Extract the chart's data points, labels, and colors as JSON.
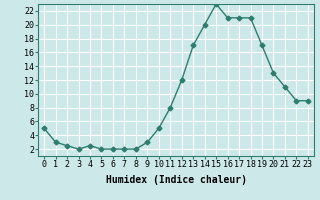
{
  "x": [
    0,
    1,
    2,
    3,
    4,
    5,
    6,
    7,
    8,
    9,
    10,
    11,
    12,
    13,
    14,
    15,
    16,
    17,
    18,
    19,
    20,
    21,
    22,
    23
  ],
  "y": [
    5,
    3,
    2.5,
    2,
    2.5,
    2,
    2,
    2,
    2,
    3,
    5,
    8,
    12,
    17,
    20,
    23,
    21,
    21,
    21,
    17,
    13,
    11,
    9,
    9
  ],
  "line_color": "#2e7d6e",
  "marker": "D",
  "marker_size": 2.5,
  "bg_color": "#cce8e8",
  "grid_color": "#ffffff",
  "xlabel": "Humidex (Indice chaleur)",
  "ylabel": "",
  "title": "",
  "xlim": [
    -0.5,
    23.5
  ],
  "ylim": [
    1,
    23
  ],
  "yticks": [
    2,
    4,
    6,
    8,
    10,
    12,
    14,
    16,
    18,
    20,
    22
  ],
  "xticks": [
    0,
    1,
    2,
    3,
    4,
    5,
    6,
    7,
    8,
    9,
    10,
    11,
    12,
    13,
    14,
    15,
    16,
    17,
    18,
    19,
    20,
    21,
    22,
    23
  ],
  "xlabel_fontsize": 7,
  "tick_fontsize": 6,
  "linewidth": 1.0
}
